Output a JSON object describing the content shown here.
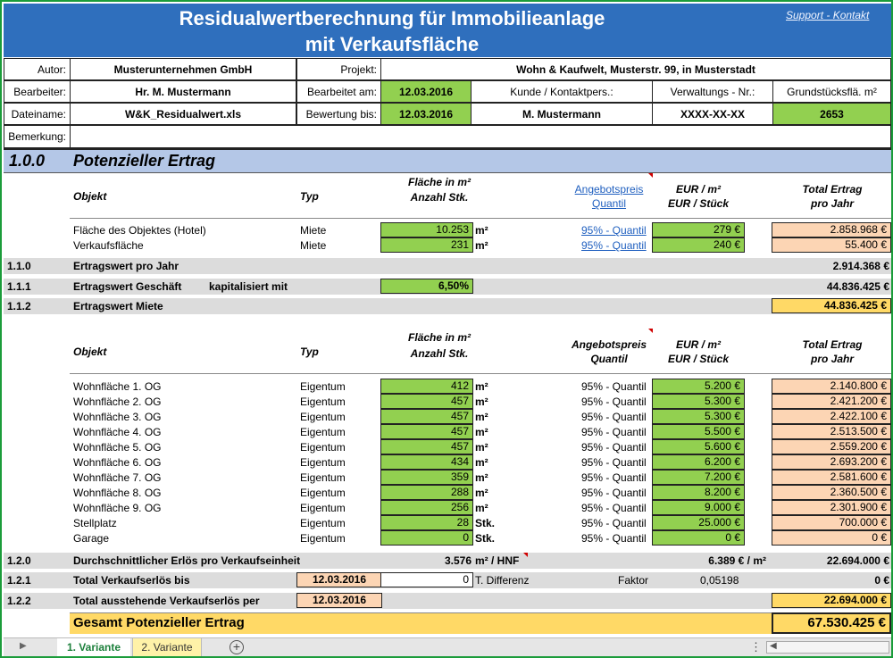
{
  "title": {
    "line1": "Residualwertberechnung für Immobilieanlage",
    "line2": "mit Verkaufsfläche"
  },
  "support_link": "Support - Kontakt",
  "header": {
    "autor_label": "Autor:",
    "autor_value": "Musterunternehmen GmbH",
    "projekt_label": "Projekt:",
    "projekt_value": "Wohn & Kaufwelt, Musterstr. 99, in Musterstadt",
    "bearbeiter_label": "Bearbeiter:",
    "bearbeiter_value": "Hr. M. Mustermann",
    "bearbeitet_am_label": "Bearbeitet am:",
    "bearbeitet_am_value": "12.03.2016",
    "kunde_label": "Kunde / Kontaktpers.:",
    "verwaltungs_label": "Verwaltungs - Nr.:",
    "grundstueck_label": "Grundstücksflä. m²",
    "dateiname_label": "Dateiname:",
    "dateiname_value": "W&K_Residualwert.xls",
    "bewertung_label": "Bewertung bis:",
    "bewertung_value": "12.03.2016",
    "kunde_value": "M. Mustermann",
    "verwaltungs_value": "XXXX-XX-XX",
    "grundstueck_value": "2653",
    "bemerkung_label": "Bemerkung:"
  },
  "section": {
    "number": "1.0.0",
    "title": "Potenzieller Ertrag"
  },
  "table1": {
    "col_objekt": "Objekt",
    "col_typ": "Typ",
    "col_flaeche_1": "Fläche in m²",
    "col_flaeche_2": "Anzahl Stk.",
    "col_angebot_1": "Angebotspreis",
    "col_angebot_2": "Quantil",
    "col_eur_1": "EUR / m²",
    "col_eur_2": "EUR / Stück",
    "col_total_1": "Total Ertrag",
    "col_total_2": "pro Jahr",
    "rows": [
      {
        "objekt": "Fläche des Objektes (Hotel)",
        "typ": "Miete",
        "flaeche": "10.253",
        "unit": "m²",
        "quantil": "95% - Quantil",
        "eur": "279 €",
        "total": "2.858.968 €"
      },
      {
        "objekt": "Verkaufsfläche",
        "typ": "Miete",
        "flaeche": "231",
        "unit": "m²",
        "quantil": "95% - Quantil",
        "eur": "240 €",
        "total": "55.400 €"
      }
    ]
  },
  "summary1": {
    "r110_num": "1.1.0",
    "r110_label": "Ertragswert pro Jahr",
    "r110_value": "2.914.368 €",
    "r111_num": "1.1.1",
    "r111_label": "Ertragswert Geschäft",
    "r111_sub": "kapitalisiert mit",
    "r111_rate": "6,50%",
    "r111_value": "44.836.425 €",
    "r112_num": "1.1.2",
    "r112_label": "Ertragswert Miete",
    "r112_value": "44.836.425 €"
  },
  "table2": {
    "col_objekt": "Objekt",
    "col_typ": "Typ",
    "col_flaeche_1": "Fläche in m²",
    "col_flaeche_2": "Anzahl Stk.",
    "col_angebot_1": "Angebotspreis",
    "col_angebot_2": "Quantil",
    "col_eur_1": "EUR / m²",
    "col_eur_2": "EUR / Stück",
    "col_total_1": "Total Ertrag",
    "col_total_2": "pro Jahr",
    "rows": [
      {
        "objekt": "Wohnfläche 1. OG",
        "typ": "Eigentum",
        "flaeche": "412",
        "unit": "m²",
        "quantil": "95% - Quantil",
        "eur": "5.200 €",
        "total": "2.140.800 €"
      },
      {
        "objekt": "Wohnfläche 2. OG",
        "typ": "Eigentum",
        "flaeche": "457",
        "unit": "m²",
        "quantil": "95% - Quantil",
        "eur": "5.300 €",
        "total": "2.421.200 €"
      },
      {
        "objekt": "Wohnfläche 3. OG",
        "typ": "Eigentum",
        "flaeche": "457",
        "unit": "m²",
        "quantil": "95% - Quantil",
        "eur": "5.300 €",
        "total": "2.422.100 €"
      },
      {
        "objekt": "Wohnfläche 4. OG",
        "typ": "Eigentum",
        "flaeche": "457",
        "unit": "m²",
        "quantil": "95% - Quantil",
        "eur": "5.500 €",
        "total": "2.513.500 €"
      },
      {
        "objekt": "Wohnfläche 5. OG",
        "typ": "Eigentum",
        "flaeche": "457",
        "unit": "m²",
        "quantil": "95% - Quantil",
        "eur": "5.600 €",
        "total": "2.559.200 €"
      },
      {
        "objekt": "Wohnfläche 6. OG",
        "typ": "Eigentum",
        "flaeche": "434",
        "unit": "m²",
        "quantil": "95% - Quantil",
        "eur": "6.200 €",
        "total": "2.693.200 €"
      },
      {
        "objekt": "Wohnfläche 7. OG",
        "typ": "Eigentum",
        "flaeche": "359",
        "unit": "m²",
        "quantil": "95% - Quantil",
        "eur": "7.200 €",
        "total": "2.581.600 €"
      },
      {
        "objekt": "Wohnfläche 8. OG",
        "typ": "Eigentum",
        "flaeche": "288",
        "unit": "m²",
        "quantil": "95% - Quantil",
        "eur": "8.200 €",
        "total": "2.360.500 €"
      },
      {
        "objekt": "Wohnfläche 9. OG",
        "typ": "Eigentum",
        "flaeche": "256",
        "unit": "m²",
        "quantil": "95% - Quantil",
        "eur": "9.000 €",
        "total": "2.301.900 €"
      },
      {
        "objekt": "Stellplatz",
        "typ": "Eigentum",
        "flaeche": "28",
        "unit": "Stk.",
        "quantil": "95% - Quantil",
        "eur": "25.000 €",
        "total": "700.000 €"
      },
      {
        "objekt": "Garage",
        "typ": "Eigentum",
        "flaeche": "0",
        "unit": "Stk.",
        "quantil": "95% - Quantil",
        "eur": "0 €",
        "total": "0 €"
      }
    ]
  },
  "summary2": {
    "r120_num": "1.2.0",
    "r120_label": "Durchschnittlicher Erlös pro Verkaufseinheit",
    "r120_area": "3.576",
    "r120_area_unit": "m² / HNF",
    "r120_price": "6.389 € / m²",
    "r120_value": "22.694.000 €",
    "r121_num": "1.2.1",
    "r121_label": "Total Verkaufserlös bis",
    "r121_date": "12.03.2016",
    "r121_diff": "0",
    "r121_diff_label": "T. Differenz",
    "r121_faktor_label": "Faktor",
    "r121_faktor": "0,05198",
    "r121_value": "0 €",
    "r122_num": "1.2.2",
    "r122_label": "Total ausstehende Verkaufserlös per",
    "r122_date": "12.03.2016",
    "r122_value": "22.694.000 €",
    "gesamt_label": "Gesamt Potenzieller Ertrag",
    "gesamt_value": "67.530.425 €"
  },
  "tabs": [
    "1. Variante",
    "2. Variante"
  ],
  "colors": {
    "title_band": "#2f6fbd",
    "green": "#92d050",
    "peach": "#fcd5b4",
    "yellow": "#ffd966",
    "section": "#b4c7e7"
  }
}
